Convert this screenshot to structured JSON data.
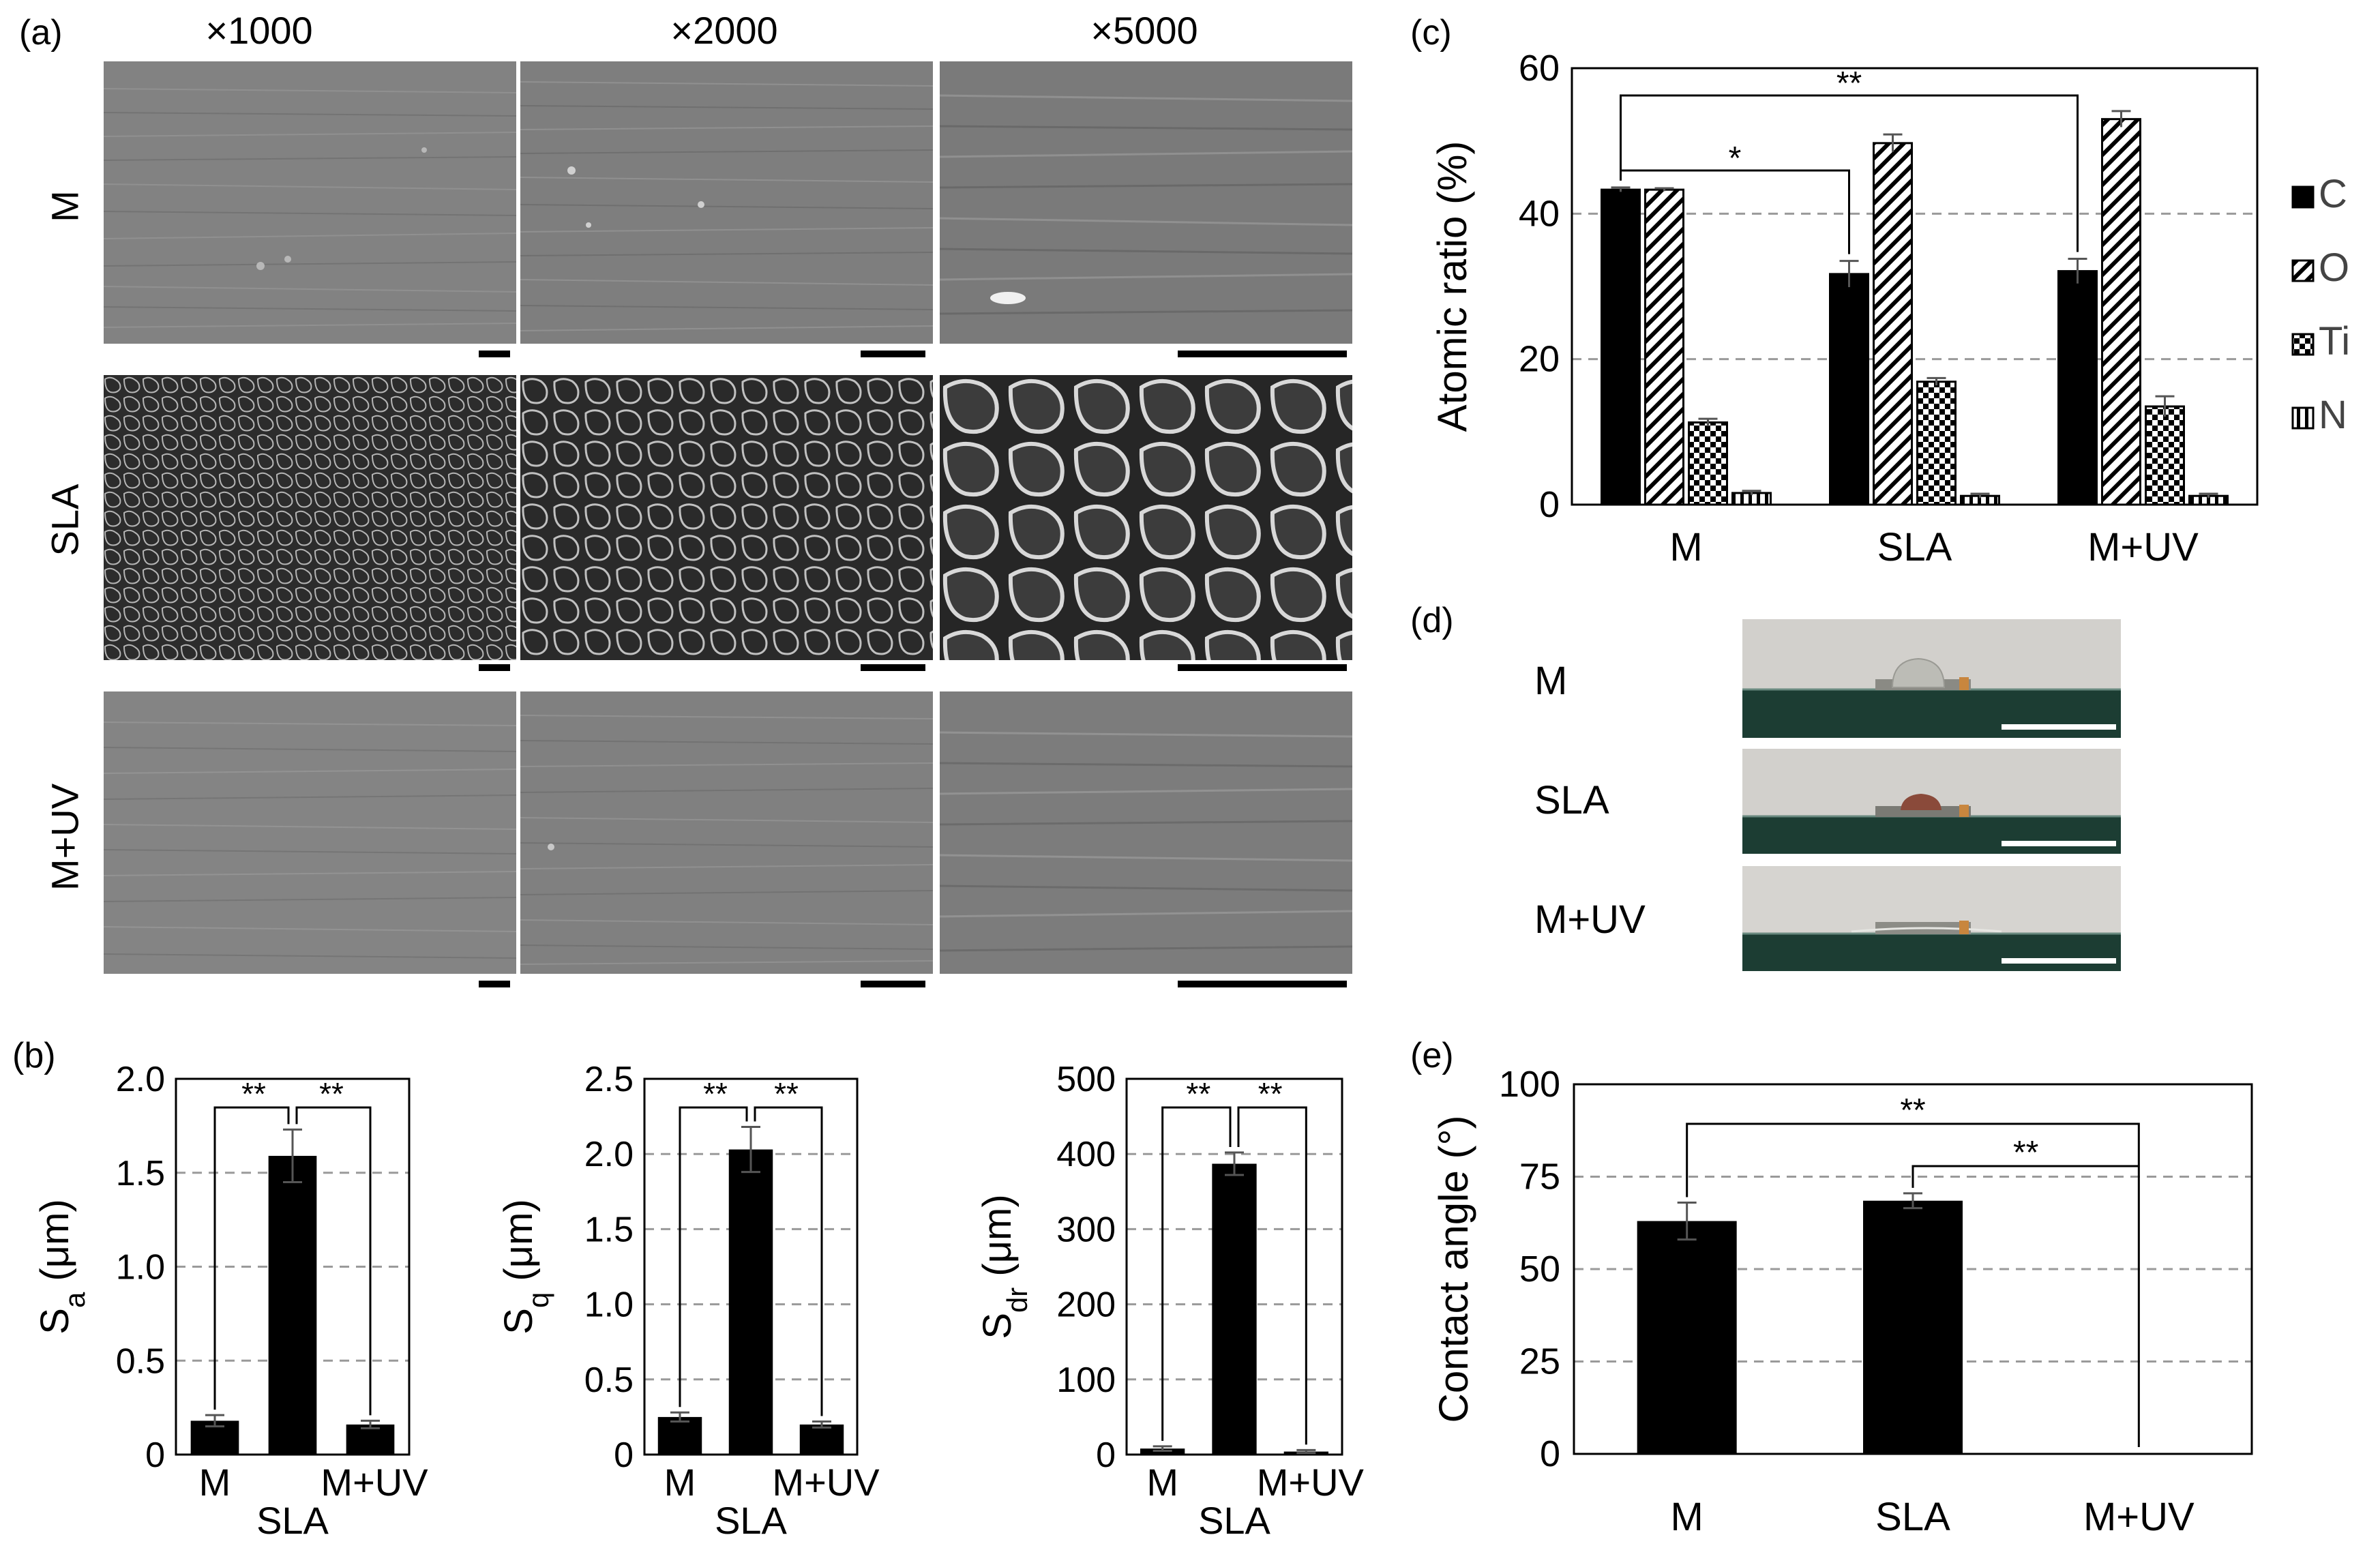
{
  "panels": {
    "a": {
      "label": "(a)",
      "magnifications": [
        "×1000",
        "×2000",
        "×5000"
      ],
      "rows": [
        "M",
        "SLA",
        "M+UV"
      ]
    },
    "b": {
      "label": "(b)"
    },
    "c": {
      "label": "(c)"
    },
    "d": {
      "label": "(d)",
      "rows": [
        "M",
        "SLA",
        "M+UV"
      ]
    },
    "e": {
      "label": "(e)"
    }
  },
  "colors": {
    "bar": "#000000",
    "grid": "#9a9a9a",
    "sem_smooth": "#7c7c7c",
    "sem_rough": "#3a3a3a"
  },
  "chart_data": [
    {
      "id": "b1",
      "type": "bar",
      "categories": [
        "M",
        "SLA",
        "M+UV"
      ],
      "values": [
        0.18,
        1.59,
        0.16
      ],
      "errors": [
        0.03,
        0.14,
        0.02
      ],
      "ylabel": "Sa (μm)",
      "ylim": [
        0,
        2.0
      ],
      "yticks": [
        "0",
        "0.5",
        "1.0",
        "1.5",
        "2.0"
      ],
      "significance": [
        "**",
        "**"
      ],
      "grid": true
    },
    {
      "id": "b2",
      "type": "bar",
      "categories": [
        "M",
        "SLA",
        "M+UV"
      ],
      "values": [
        0.25,
        2.03,
        0.2
      ],
      "errors": [
        0.03,
        0.15,
        0.02
      ],
      "ylabel": "Sq (μm)",
      "ylim": [
        0,
        2.5
      ],
      "yticks": [
        "0",
        "0.5",
        "1.0",
        "1.5",
        "2.0",
        "2.5"
      ],
      "significance": [
        "**",
        "**"
      ],
      "grid": true
    },
    {
      "id": "b3",
      "type": "bar",
      "categories": [
        "M",
        "SLA",
        "M+UV"
      ],
      "values": [
        8,
        387,
        4
      ],
      "errors": [
        3,
        15,
        2
      ],
      "ylabel": "Sdr (μm)",
      "ylim": [
        0,
        500
      ],
      "yticks": [
        "0",
        "100",
        "200",
        "300",
        "400",
        "500"
      ],
      "significance": [
        "**",
        "**"
      ],
      "grid": true
    },
    {
      "id": "c",
      "type": "bar",
      "categories": [
        "M",
        "SLA",
        "M+UV"
      ],
      "series": [
        {
          "name": "C",
          "values": [
            43.3,
            31.7,
            32.1
          ],
          "errors": [
            0.3,
            1.8,
            1.7
          ]
        },
        {
          "name": "O",
          "values": [
            43.3,
            49.7,
            53.0
          ],
          "errors": [
            0.2,
            1.2,
            1.1
          ]
        },
        {
          "name": "Ti",
          "values": [
            11.3,
            16.9,
            13.5
          ],
          "errors": [
            0.5,
            0.5,
            1.4
          ]
        },
        {
          "name": "N",
          "values": [
            1.6,
            1.2,
            1.2
          ],
          "errors": [
            0.3,
            0.3,
            0.3
          ]
        }
      ],
      "ylabel": "Atomic ratio (%)",
      "ylim": [
        0,
        60
      ],
      "yticks": [
        "0",
        "20",
        "40",
        "60"
      ],
      "significance": [
        "*",
        "**"
      ],
      "legend": "right",
      "grid": true
    },
    {
      "id": "e",
      "type": "bar",
      "categories": [
        "M",
        "SLA",
        "M+UV"
      ],
      "values": [
        63,
        68.5,
        0
      ],
      "errors": [
        5,
        2,
        0
      ],
      "ylabel": "Contact angle (°)",
      "ylim": [
        0,
        100
      ],
      "yticks": [
        "0",
        "25",
        "50",
        "75",
        "100"
      ],
      "significance": [
        "**",
        "**"
      ],
      "grid": true
    }
  ]
}
